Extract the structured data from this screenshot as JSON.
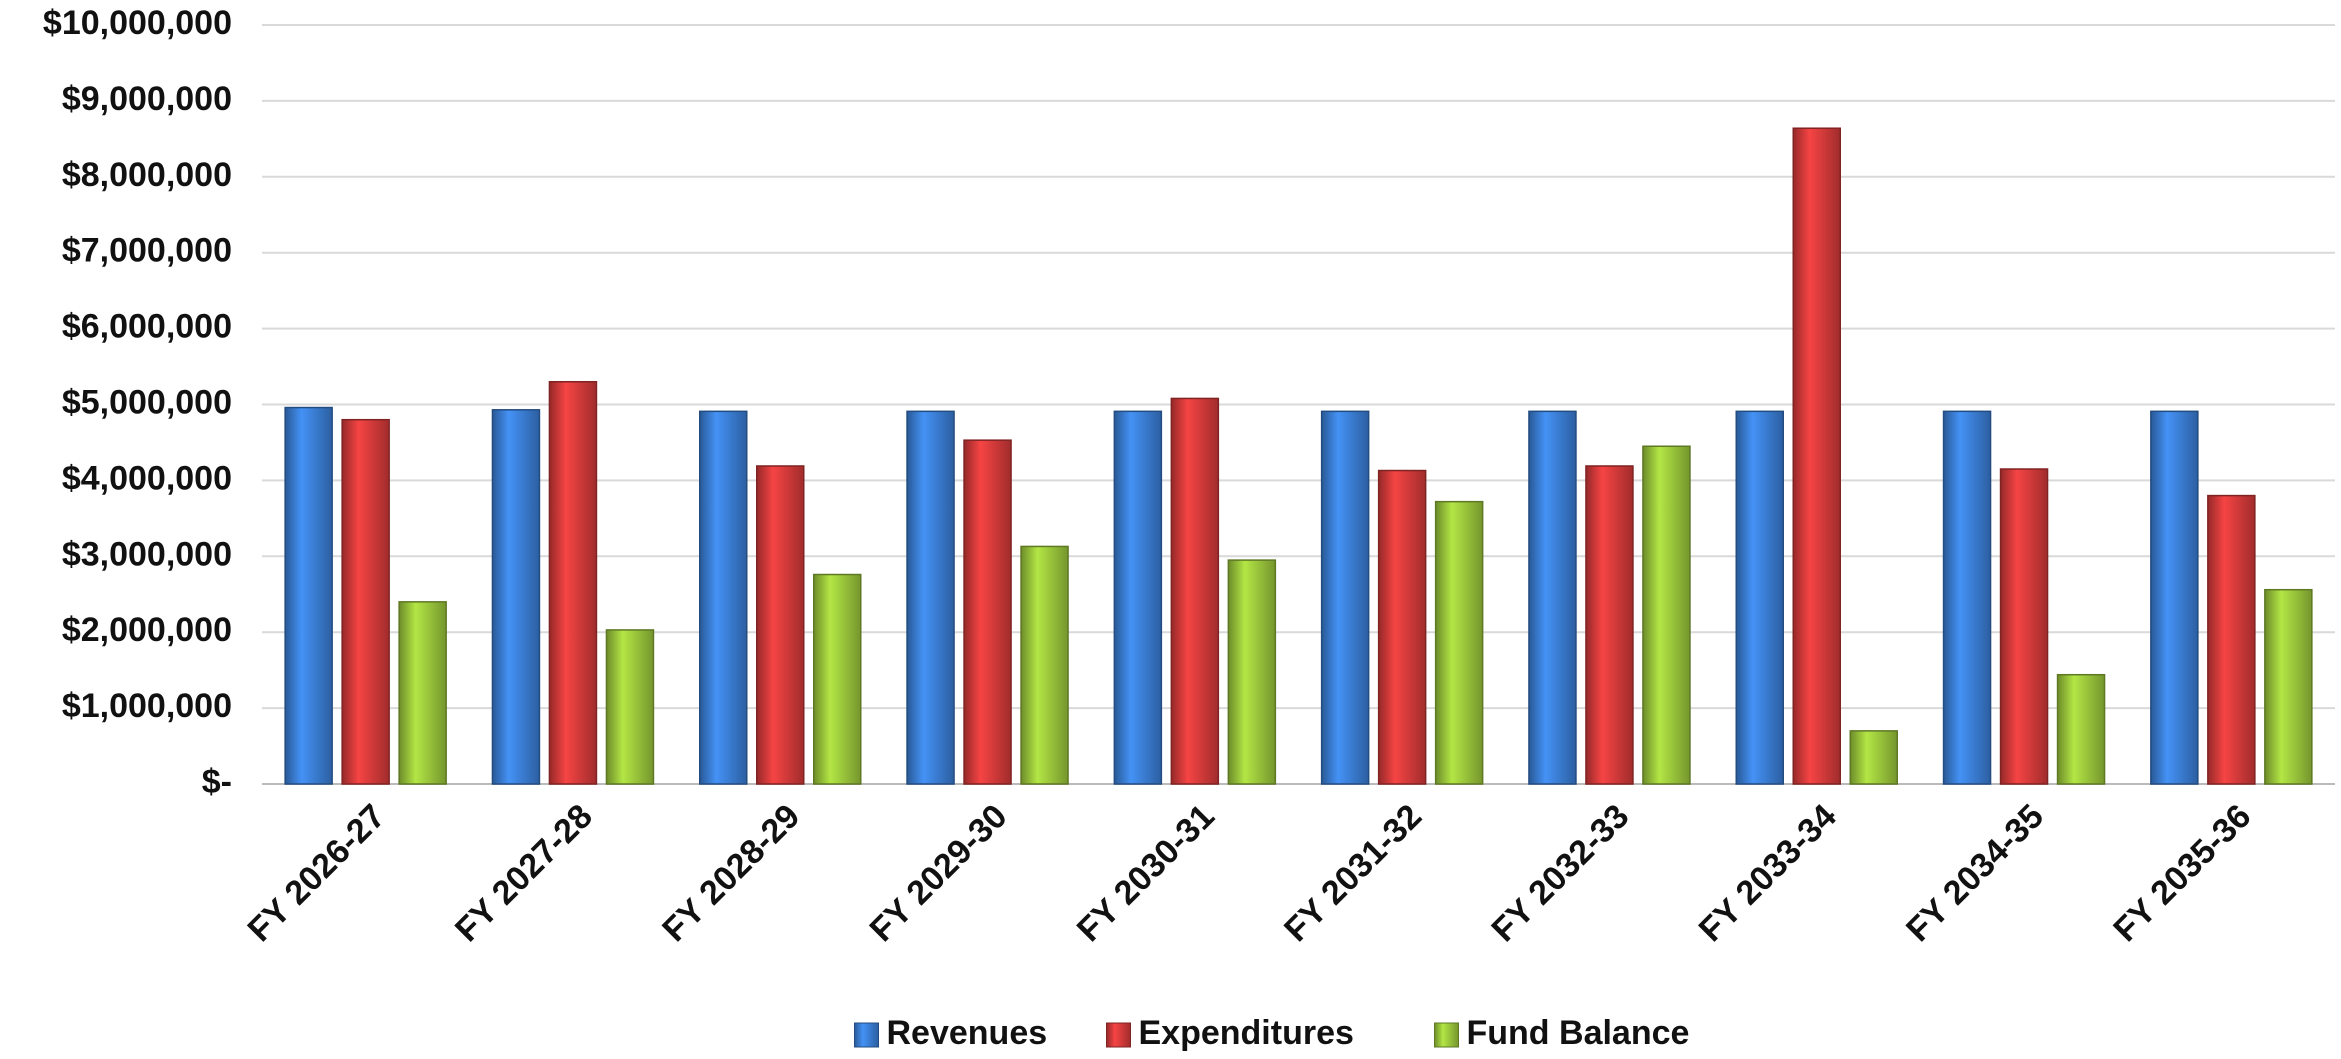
{
  "chart_data": {
    "type": "bar",
    "categories": [
      "FY 2026-27",
      "FY 2027-28",
      "FY 2028-29",
      "FY 2029-30",
      "FY 2030-31",
      "FY 2031-32",
      "FY 2032-33",
      "FY 2033-34",
      "FY 2034-35",
      "FY 2035-36"
    ],
    "series": [
      {
        "name": "Revenues",
        "color": "#3b7fd6",
        "values": [
          4960000,
          4930000,
          4910000,
          4910000,
          4910000,
          4910000,
          4910000,
          4910000,
          4910000,
          4910000
        ]
      },
      {
        "name": "Expenditures",
        "color": "#d63b3b",
        "values": [
          4800000,
          5300000,
          4190000,
          4530000,
          5080000,
          4130000,
          4190000,
          8640000,
          4150000,
          3800000
        ]
      },
      {
        "name": "Fund Balance",
        "color": "#9cc83c",
        "values": [
          2400000,
          2030000,
          2760000,
          3130000,
          2950000,
          3720000,
          4450000,
          700000,
          1440000,
          2560000
        ]
      }
    ],
    "ylim": [
      0,
      10000000
    ],
    "yticks": [
      {
        "value": 0,
        "label": "$-"
      },
      {
        "value": 1000000,
        "label": "$1,000,000"
      },
      {
        "value": 2000000,
        "label": "$2,000,000"
      },
      {
        "value": 3000000,
        "label": "$3,000,000"
      },
      {
        "value": 4000000,
        "label": "$4,000,000"
      },
      {
        "value": 5000000,
        "label": "$5,000,000"
      },
      {
        "value": 6000000,
        "label": "$6,000,000"
      },
      {
        "value": 7000000,
        "label": "$7,000,000"
      },
      {
        "value": 8000000,
        "label": "$8,000,000"
      },
      {
        "value": 9000000,
        "label": "$9,000,000"
      },
      {
        "value": 10000000,
        "label": "$10,000,000"
      }
    ],
    "grid": true,
    "legend": "bottom"
  }
}
